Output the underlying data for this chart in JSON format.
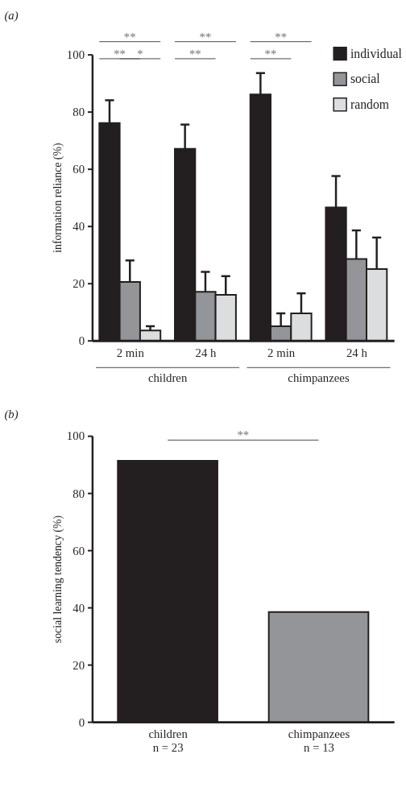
{
  "chart_data": [
    {
      "type": "bar",
      "title": "(a)",
      "ylabel": "information reliance (%)",
      "categories": [
        "2 min",
        "24 h",
        "2 min",
        "24 h"
      ],
      "series": [
        {
          "name": "individual",
          "color": "#231f20",
          "values": [
            76,
            67,
            86,
            46.5
          ],
          "errors": [
            [
              76,
              84
            ],
            [
              67,
              75.5
            ],
            [
              86,
              93.5
            ],
            [
              46.5,
              57.5
            ]
          ]
        },
        {
          "name": "social",
          "color": "#939598",
          "values": [
            20.5,
            17,
            5,
            28.5
          ],
          "errors": [
            [
              20.5,
              28
            ],
            [
              17,
              24
            ],
            [
              5,
              9.5
            ],
            [
              28.5,
              38.5
            ]
          ]
        },
        {
          "name": "random",
          "color": "#dcddde",
          "values": [
            3.5,
            16,
            9.5,
            25
          ],
          "errors": [
            [
              3.5,
              5
            ],
            [
              16,
              22.5
            ],
            [
              9.5,
              16.5
            ],
            [
              25,
              36
            ]
          ]
        }
      ],
      "ylim": [
        0,
        100
      ],
      "yticks": [
        0,
        20,
        40,
        60,
        80,
        100
      ],
      "legend": "top right",
      "annotations": [
        "**",
        "**",
        "*",
        "**",
        "**",
        "**",
        "**",
        "children",
        "chimpanzees"
      ]
    },
    {
      "type": "bar",
      "title": "(b)",
      "ylabel": "social learning tendency (%)",
      "categories": [
        "children\nn = 23",
        "chimpanzees\nn = 13"
      ],
      "values": [
        91.3,
        38.4
      ],
      "colors": [
        "#231f20",
        "#939598"
      ],
      "ylim": [
        0,
        100
      ],
      "yticks": [
        0,
        20,
        40,
        60,
        80,
        100
      ],
      "annotations": [
        "**"
      ]
    }
  ]
}
